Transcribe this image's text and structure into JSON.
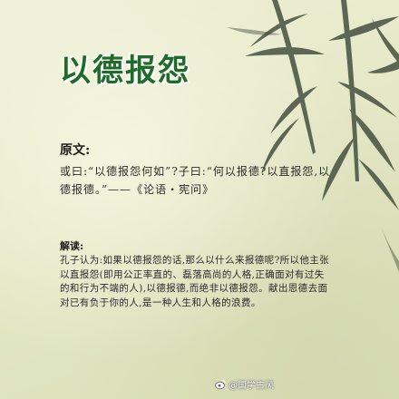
{
  "title": "以德报怨",
  "original": {
    "heading": "原文:",
    "text": "或曰:“以德报怨何如”?子曰:“何以报德?以直报怨,以德报德。”——《论语・宪问》"
  },
  "interpretation": {
    "heading": "解读:",
    "text": "孔子认为:如果以德报怨的话,那么以什么来报德呢?所以他主张以直报怨(即用公正率直的、磊落高尚的人格,正确面对有过失的和行为不端的人),以德报德,而绝非以德报怨。献出恩德去面对已有负于你的人,是一种人生和人格的浪费。"
  },
  "watermark": "@国学古风",
  "colors": {
    "title": "#1f6b2a",
    "background": "#e4e8c6",
    "bamboo": "#3f4a3a"
  },
  "icons": [
    "weibo-icon"
  ]
}
